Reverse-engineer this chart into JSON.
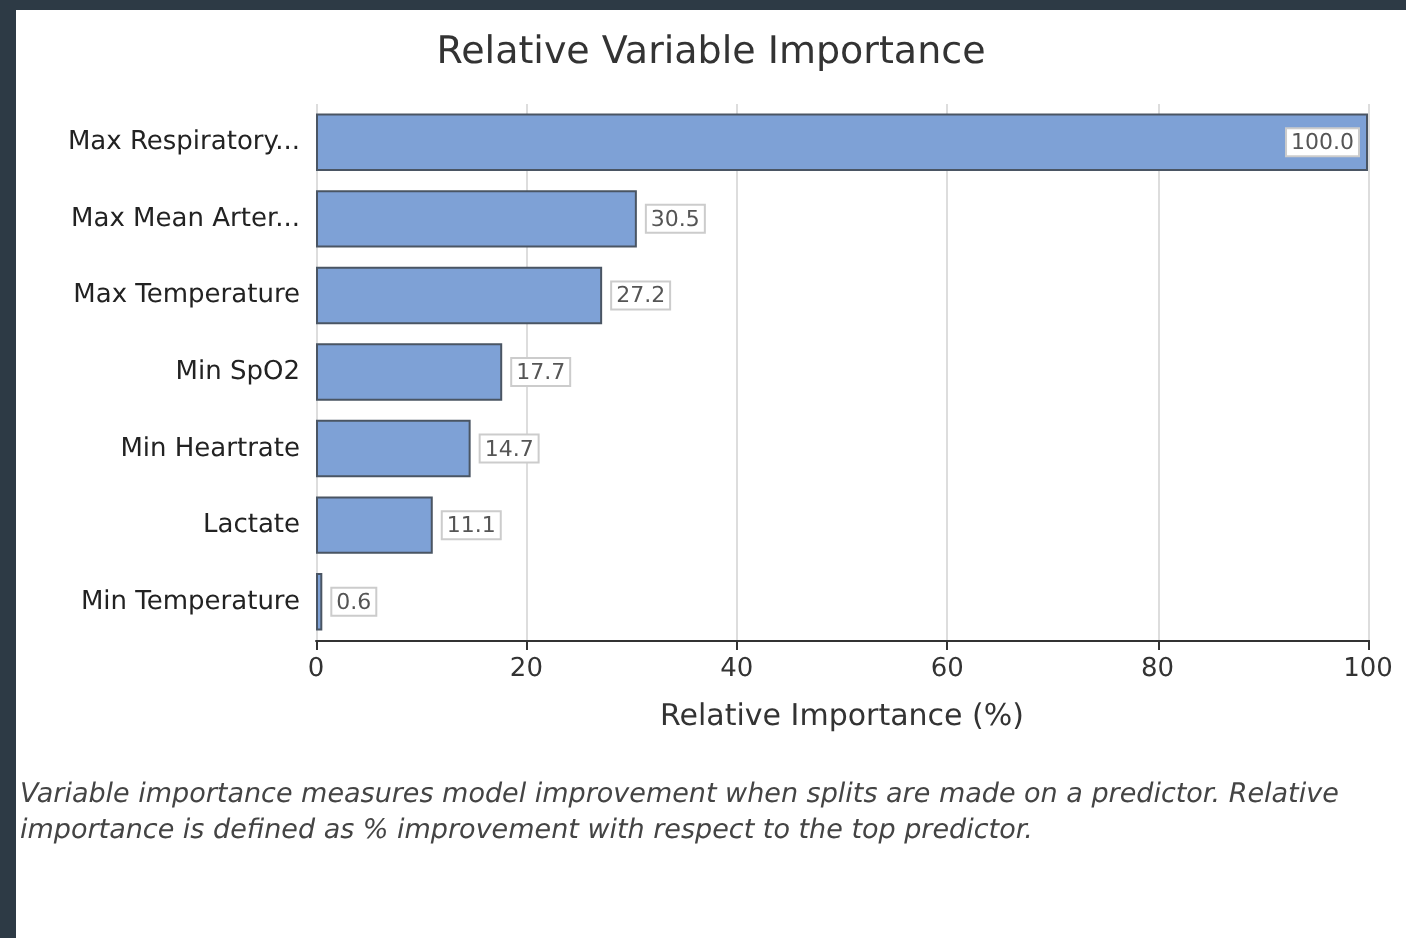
{
  "chart_data": {
    "type": "bar",
    "orientation": "horizontal",
    "title": "Relative Variable Importance",
    "xlabel": "Relative Importance (%)",
    "categories": [
      "Max Respiratory...",
      "Max Mean Arter...",
      "Max Temperature",
      "Min SpO2",
      "Min Heartrate",
      "Lactate",
      "Min Temperature"
    ],
    "values": [
      100,
      30.5,
      27.2,
      17.7,
      14.7,
      11.1,
      0.6
    ],
    "value_labels": [
      "100.0",
      "30.5",
      "27.2",
      "17.7",
      "14.7",
      "11.1",
      "0.6"
    ],
    "color": "#7ea1d6",
    "xlim": [
      0,
      100
    ],
    "xticks": [
      0,
      20,
      40,
      60,
      80,
      100
    ],
    "grid": "x",
    "annotations": [
      "Variable importance measures model improvement when splits are made on a predictor. Relative importance is defined as % improvement with respect to the top predictor."
    ]
  }
}
